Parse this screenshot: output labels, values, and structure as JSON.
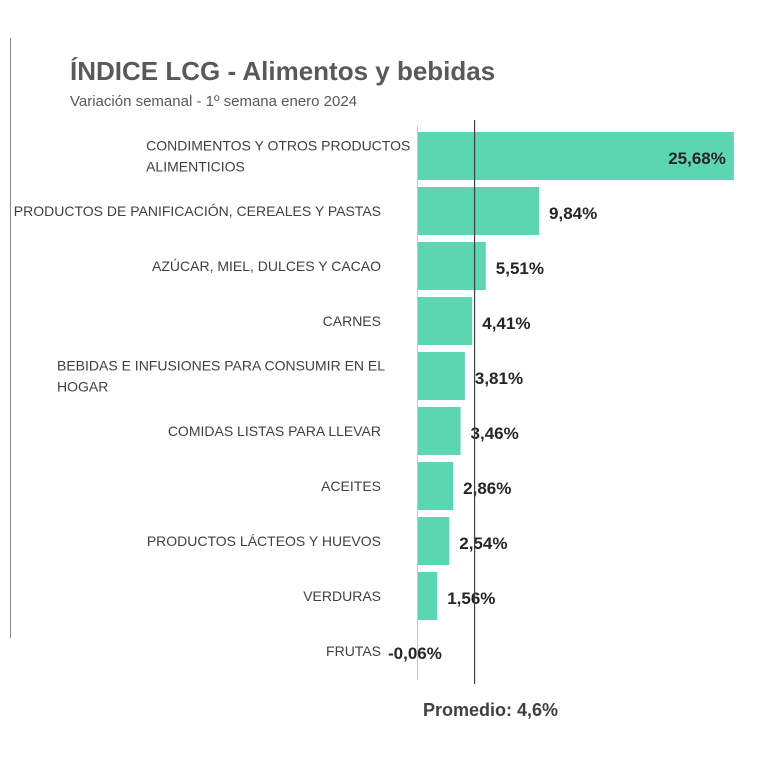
{
  "chart_data": {
    "type": "bar",
    "orientation": "horizontal",
    "title": "ÍNDICE LCG - Alimentos y bebidas",
    "subtitle": "Variación semanal - 1º semana enero 2024",
    "categories": [
      [
        "CONDIMENTOS Y OTROS PRODUCTOS",
        "ALIMENTICIOS"
      ],
      [
        "PRODUCTOS DE PANIFICACIÓN, CEREALES Y PASTAS"
      ],
      [
        "AZÚCAR, MIEL, DULCES Y CACAO"
      ],
      [
        "CARNES"
      ],
      [
        "BEBIDAS E INFUSIONES PARA CONSUMIR EN EL",
        "HOGAR"
      ],
      [
        "COMIDAS LISTAS PARA LLEVAR"
      ],
      [
        "ACEITES"
      ],
      [
        "PRODUCTOS LÁCTEOS Y HUEVOS"
      ],
      [
        "VERDURAS"
      ],
      [
        "FRUTAS"
      ]
    ],
    "values": [
      25.68,
      9.84,
      5.51,
      4.41,
      3.81,
      3.46,
      2.86,
      2.54,
      1.56,
      -0.06
    ],
    "value_labels": [
      "25,68%",
      "9,84%",
      "5,51%",
      "4,41%",
      "3,81%",
      "3,46%",
      "2,86%",
      "2,54%",
      "1,56%",
      "-0,06%"
    ],
    "average": 4.6,
    "average_label": "Promedio: 4,6%",
    "bar_color": "#5cd6b0",
    "grid": false,
    "legend": "none"
  }
}
